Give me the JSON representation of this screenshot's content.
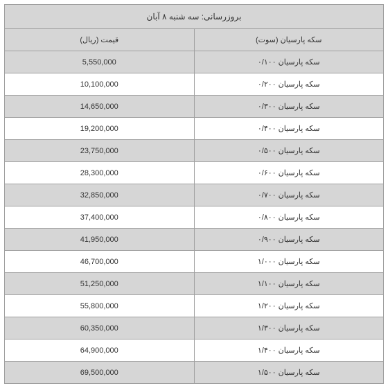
{
  "header": {
    "title": "بروزرسانی: سه شنبه ۸ آبان"
  },
  "table": {
    "columns": {
      "name": "سکه پارسیان (سوت)",
      "price": "قیمت (ریال)"
    },
    "rows": [
      {
        "name": "سکه پارسیان ۰/۱۰۰",
        "price": "5,550,000"
      },
      {
        "name": "سکه پارسیان ۰/۲۰۰",
        "price": "10,100,000"
      },
      {
        "name": "سکه پارسیان ۰/۳۰۰",
        "price": "14,650,000"
      },
      {
        "name": "سکه پارسیان ۰/۴۰۰",
        "price": "19,200,000"
      },
      {
        "name": "سکه پارسیان ۰/۵۰۰",
        "price": "23,750,000"
      },
      {
        "name": "سکه پارسیان ۰/۶۰۰",
        "price": "28,300,000"
      },
      {
        "name": "سکه پارسیان ۰/۷۰۰",
        "price": "32,850,000"
      },
      {
        "name": "سکه پارسیان ۰/۸۰۰",
        "price": "37,400,000"
      },
      {
        "name": "سکه پارسیان ۰/۹۰۰",
        "price": "41,950,000"
      },
      {
        "name": "سکه پارسیان ۱/۰۰۰",
        "price": "46,700,000"
      },
      {
        "name": "سکه پارسیان ۱/۱۰۰",
        "price": "51,250,000"
      },
      {
        "name": "سکه پارسیان ۱/۲۰۰",
        "price": "55,800,000"
      },
      {
        "name": "سکه پارسیان ۱/۳۰۰",
        "price": "60,350,000"
      },
      {
        "name": "سکه پارسیان ۱/۴۰۰",
        "price": "64,900,000"
      },
      {
        "name": "سکه پارسیان ۱/۵۰۰",
        "price": "69,500,000"
      }
    ],
    "styling": {
      "header_bg": "#d6d6d6",
      "odd_row_bg": "#d6d6d6",
      "even_row_bg": "#ffffff",
      "border_color": "#a0a0a0",
      "text_color": "#333333",
      "font_size_body": 11,
      "font_size_title": 12,
      "column_widths": [
        "50%",
        "50%"
      ]
    }
  }
}
